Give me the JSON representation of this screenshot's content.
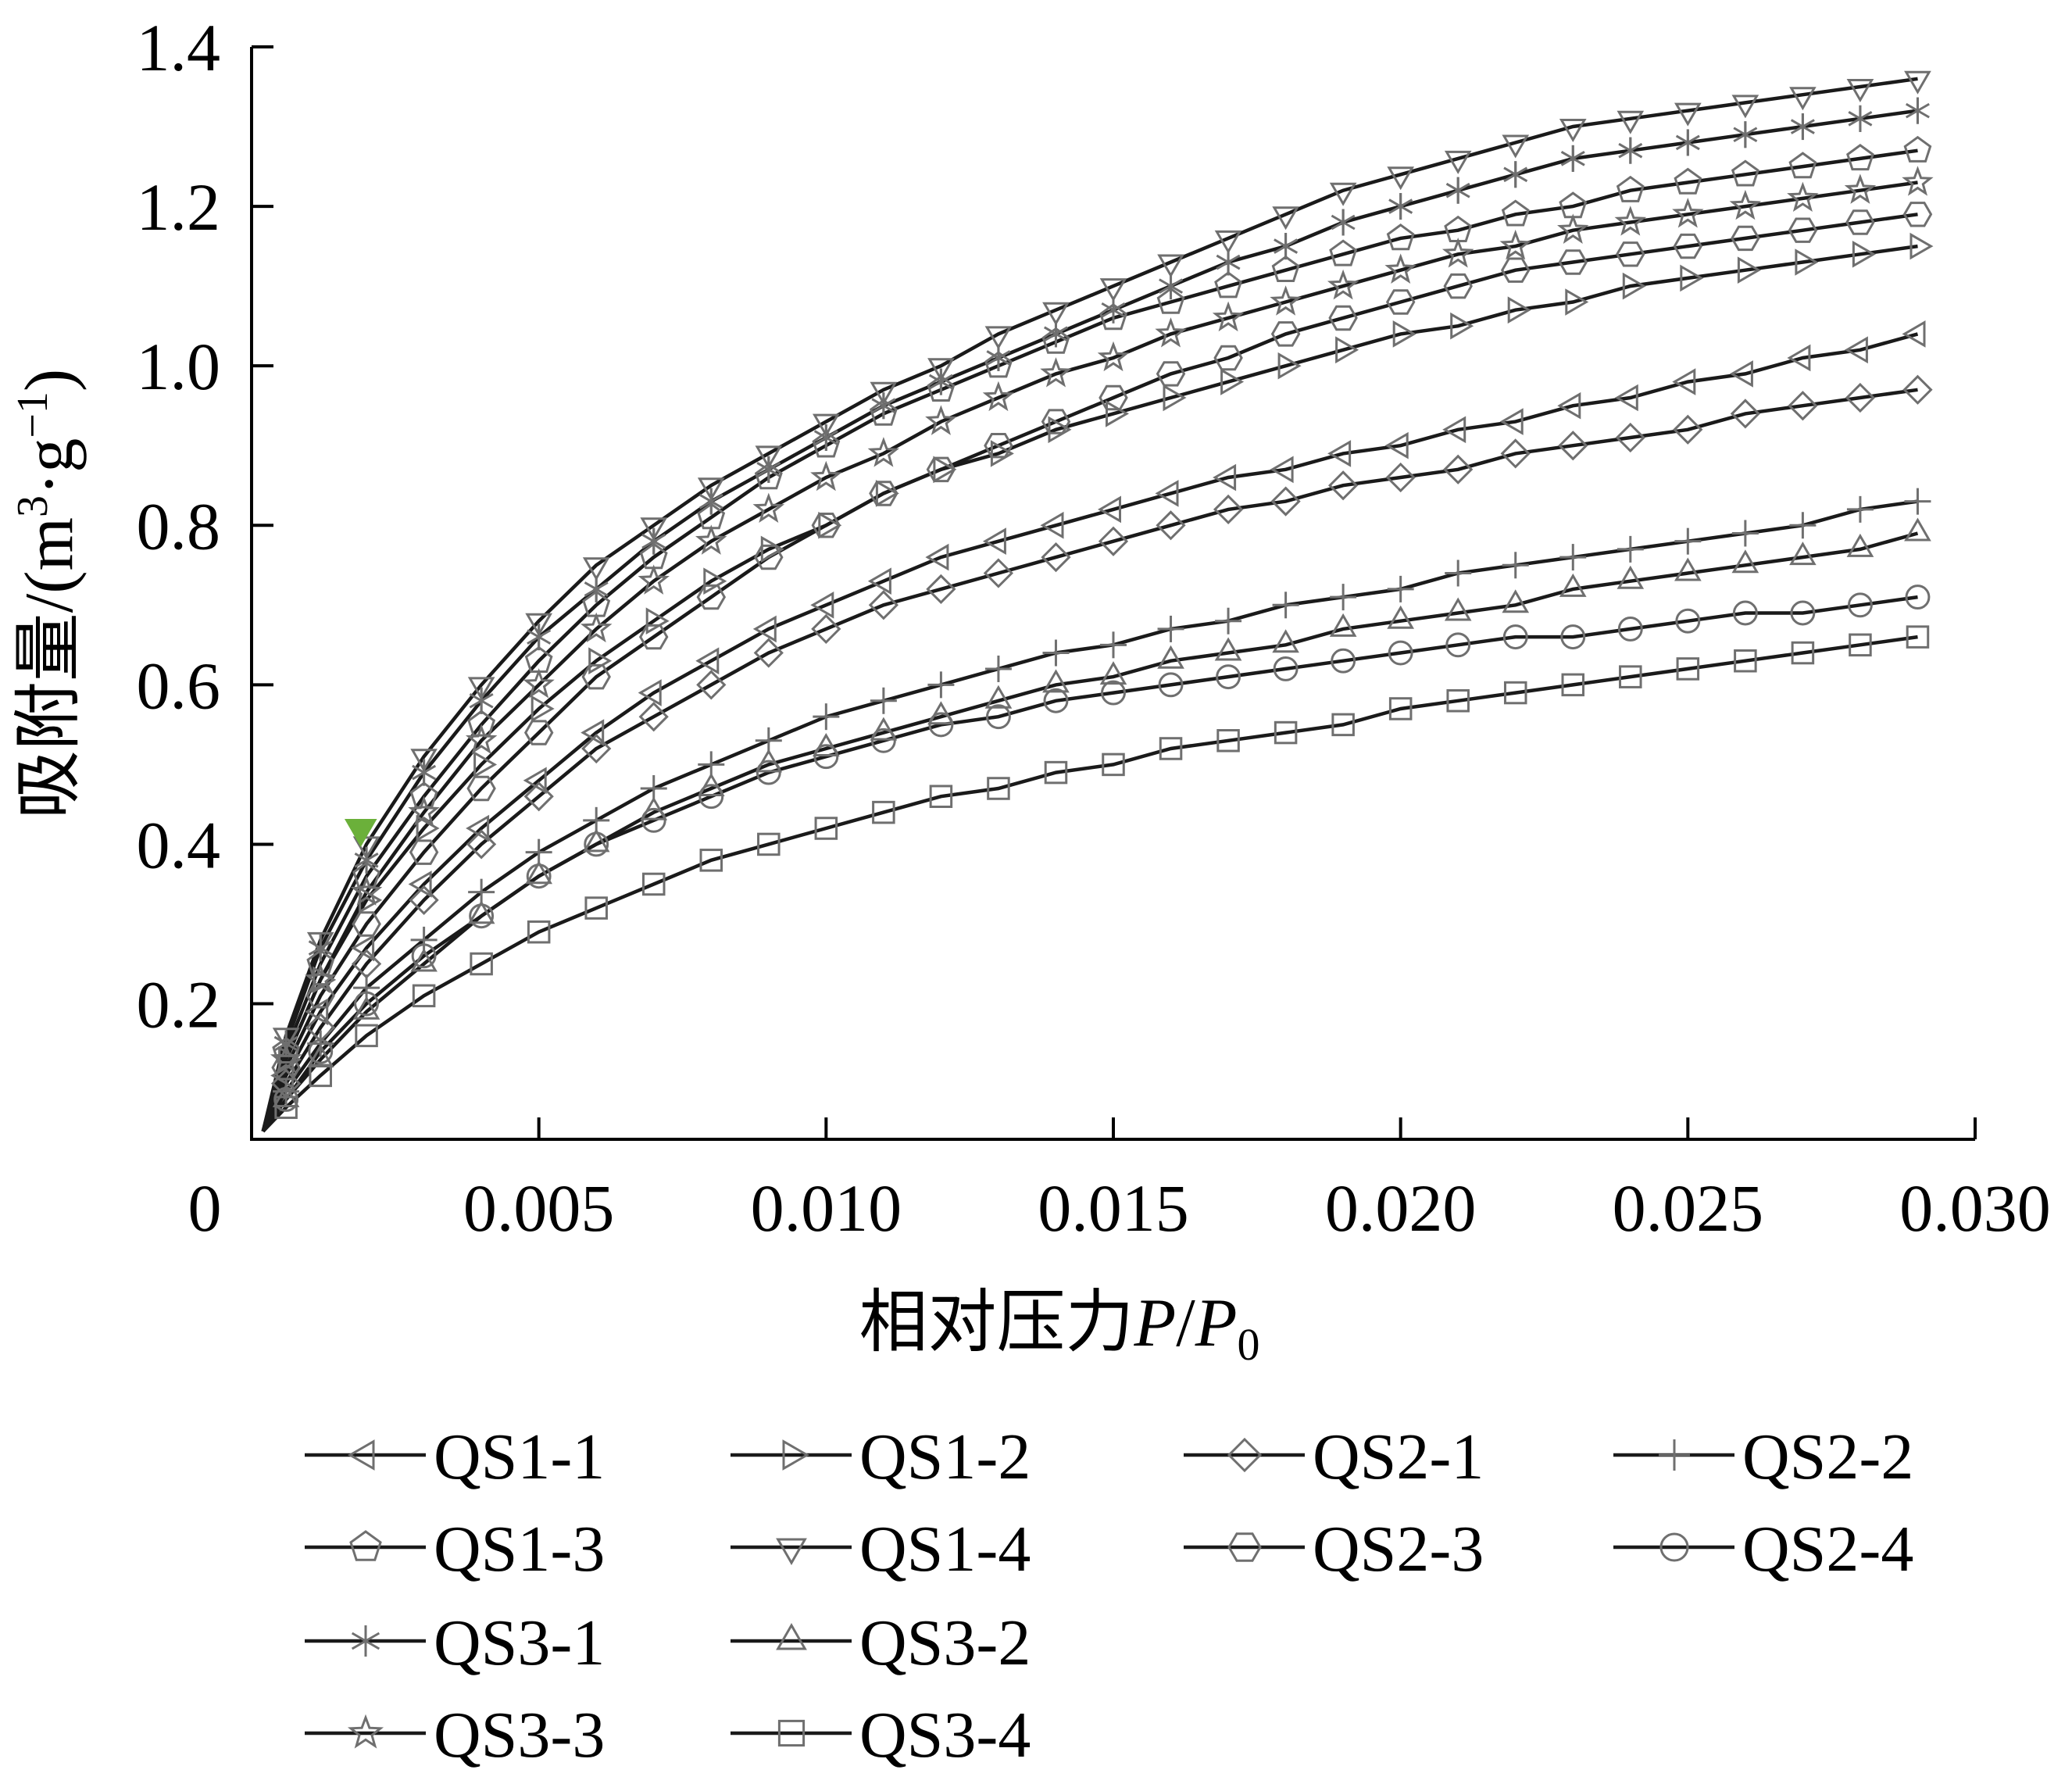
{
  "chart_data": {
    "type": "line",
    "title": "",
    "xlabel": {
      "prefix": "相对压力",
      "var1": "P",
      "slash": "/",
      "var2": "P",
      "sub": "0"
    },
    "ylabel": {
      "prefix": "吸附量/(m",
      "sup1": "3",
      "mid": "·g",
      "sup2": "−1",
      "suffix": ")"
    },
    "xlim": [
      0,
      0.03
    ],
    "ylim": [
      0.03,
      1.4
    ],
    "x_ticks": [
      {
        "value": 0,
        "label": "0"
      },
      {
        "value": 0.005,
        "label": "0.005"
      },
      {
        "value": 0.01,
        "label": "0.010"
      },
      {
        "value": 0.015,
        "label": "0.015"
      },
      {
        "value": 0.02,
        "label": "0.020"
      },
      {
        "value": 0.025,
        "label": "0.025"
      },
      {
        "value": 0.03,
        "label": "0.030"
      }
    ],
    "y_ticks": [
      {
        "value": 0.2,
        "label": "0.2"
      },
      {
        "value": 0.4,
        "label": "0.4"
      },
      {
        "value": 0.6,
        "label": "0.6"
      },
      {
        "value": 0.8,
        "label": "0.8"
      },
      {
        "value": 1.0,
        "label": "1.0"
      },
      {
        "value": 1.2,
        "label": "1.2"
      },
      {
        "value": 1.4,
        "label": "1.4"
      }
    ],
    "grid": false,
    "legend_position": "bottom",
    "highlight_point": {
      "x": 0.0019,
      "y": 0.42,
      "color": "#6bb03a"
    },
    "x": [
      0.0002,
      0.0006,
      0.0012,
      0.002,
      0.003,
      0.004,
      0.005,
      0.006,
      0.007,
      0.008,
      0.009,
      0.01,
      0.011,
      0.012,
      0.013,
      0.014,
      0.015,
      0.016,
      0.017,
      0.018,
      0.019,
      0.02,
      0.021,
      0.022,
      0.023,
      0.024,
      0.025,
      0.026,
      0.027,
      0.028,
      0.029
    ],
    "series": [
      {
        "name": "QS1-1",
        "marker": "triangle-left",
        "values": [
          0.04,
          0.11,
          0.19,
          0.27,
          0.35,
          0.42,
          0.48,
          0.54,
          0.59,
          0.63,
          0.67,
          0.7,
          0.73,
          0.76,
          0.78,
          0.8,
          0.82,
          0.84,
          0.86,
          0.87,
          0.89,
          0.9,
          0.92,
          0.93,
          0.95,
          0.96,
          0.98,
          0.99,
          1.01,
          1.02,
          1.04
        ]
      },
      {
        "name": "QS1-2",
        "marker": "triangle-right",
        "values": [
          0.04,
          0.13,
          0.23,
          0.33,
          0.42,
          0.5,
          0.57,
          0.63,
          0.68,
          0.73,
          0.77,
          0.8,
          0.84,
          0.87,
          0.89,
          0.92,
          0.94,
          0.96,
          0.98,
          1.0,
          1.02,
          1.04,
          1.05,
          1.07,
          1.08,
          1.1,
          1.11,
          1.12,
          1.13,
          1.14,
          1.15
        ]
      },
      {
        "name": "QS2-1",
        "marker": "diamond",
        "values": [
          0.04,
          0.1,
          0.17,
          0.25,
          0.33,
          0.4,
          0.46,
          0.52,
          0.56,
          0.6,
          0.64,
          0.67,
          0.7,
          0.72,
          0.74,
          0.76,
          0.78,
          0.8,
          0.82,
          0.83,
          0.85,
          0.86,
          0.87,
          0.89,
          0.9,
          0.91,
          0.92,
          0.94,
          0.95,
          0.96,
          0.97
        ]
      },
      {
        "name": "QS2-2",
        "marker": "plus",
        "values": [
          0.04,
          0.09,
          0.15,
          0.22,
          0.28,
          0.34,
          0.39,
          0.43,
          0.47,
          0.5,
          0.53,
          0.56,
          0.58,
          0.6,
          0.62,
          0.64,
          0.65,
          0.67,
          0.68,
          0.7,
          0.71,
          0.72,
          0.74,
          0.75,
          0.76,
          0.77,
          0.78,
          0.79,
          0.8,
          0.82,
          0.83
        ]
      },
      {
        "name": "QS1-3",
        "marker": "pentagon",
        "values": [
          0.04,
          0.14,
          0.25,
          0.36,
          0.46,
          0.55,
          0.63,
          0.7,
          0.76,
          0.81,
          0.86,
          0.9,
          0.94,
          0.97,
          1.0,
          1.03,
          1.06,
          1.08,
          1.1,
          1.12,
          1.14,
          1.16,
          1.17,
          1.19,
          1.2,
          1.22,
          1.23,
          1.24,
          1.25,
          1.26,
          1.27
        ]
      },
      {
        "name": "QS1-4",
        "marker": "triangle-down",
        "values": [
          0.04,
          0.16,
          0.28,
          0.4,
          0.51,
          0.6,
          0.68,
          0.75,
          0.8,
          0.85,
          0.89,
          0.93,
          0.97,
          1.0,
          1.04,
          1.07,
          1.1,
          1.13,
          1.16,
          1.19,
          1.22,
          1.24,
          1.26,
          1.28,
          1.3,
          1.31,
          1.32,
          1.33,
          1.34,
          1.35,
          1.36
        ]
      },
      {
        "name": "QS2-3",
        "marker": "hexagon",
        "values": [
          0.04,
          0.12,
          0.21,
          0.3,
          0.39,
          0.47,
          0.54,
          0.61,
          0.66,
          0.71,
          0.76,
          0.8,
          0.84,
          0.87,
          0.9,
          0.93,
          0.96,
          0.99,
          1.01,
          1.04,
          1.06,
          1.08,
          1.1,
          1.12,
          1.13,
          1.14,
          1.15,
          1.16,
          1.17,
          1.18,
          1.19
        ]
      },
      {
        "name": "QS2-4",
        "marker": "circle",
        "values": [
          0.04,
          0.08,
          0.14,
          0.2,
          0.26,
          0.31,
          0.36,
          0.4,
          0.43,
          0.46,
          0.49,
          0.51,
          0.53,
          0.55,
          0.56,
          0.58,
          0.59,
          0.6,
          0.61,
          0.62,
          0.63,
          0.64,
          0.65,
          0.66,
          0.66,
          0.67,
          0.68,
          0.69,
          0.69,
          0.7,
          0.71
        ]
      },
      {
        "name": "QS3-1",
        "marker": "asterisk",
        "values": [
          0.04,
          0.15,
          0.27,
          0.38,
          0.49,
          0.58,
          0.66,
          0.72,
          0.78,
          0.83,
          0.87,
          0.91,
          0.95,
          0.98,
          1.01,
          1.04,
          1.07,
          1.1,
          1.13,
          1.15,
          1.18,
          1.2,
          1.22,
          1.24,
          1.26,
          1.27,
          1.28,
          1.29,
          1.3,
          1.31,
          1.32
        ]
      },
      {
        "name": "QS3-2",
        "marker": "triangle-up",
        "values": [
          0.04,
          0.08,
          0.13,
          0.19,
          0.25,
          0.31,
          0.36,
          0.4,
          0.44,
          0.47,
          0.5,
          0.52,
          0.54,
          0.56,
          0.58,
          0.6,
          0.61,
          0.63,
          0.64,
          0.65,
          0.67,
          0.68,
          0.69,
          0.7,
          0.72,
          0.73,
          0.74,
          0.75,
          0.76,
          0.77,
          0.79
        ]
      },
      {
        "name": "QS3-3",
        "marker": "star",
        "values": [
          0.04,
          0.13,
          0.23,
          0.34,
          0.44,
          0.53,
          0.6,
          0.67,
          0.73,
          0.78,
          0.82,
          0.86,
          0.89,
          0.93,
          0.96,
          0.99,
          1.01,
          1.04,
          1.06,
          1.08,
          1.1,
          1.12,
          1.14,
          1.15,
          1.17,
          1.18,
          1.19,
          1.2,
          1.21,
          1.22,
          1.23
        ]
      },
      {
        "name": "QS3-4",
        "marker": "square",
        "values": [
          0.04,
          0.07,
          0.11,
          0.16,
          0.21,
          0.25,
          0.29,
          0.32,
          0.35,
          0.38,
          0.4,
          0.42,
          0.44,
          0.46,
          0.47,
          0.49,
          0.5,
          0.52,
          0.53,
          0.54,
          0.55,
          0.57,
          0.58,
          0.59,
          0.6,
          0.61,
          0.62,
          0.63,
          0.64,
          0.65,
          0.66
        ]
      }
    ]
  }
}
